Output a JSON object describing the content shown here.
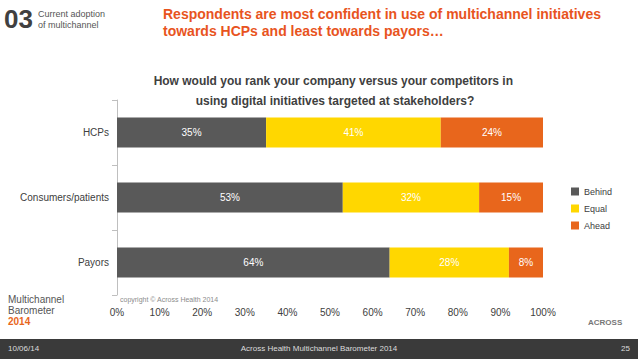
{
  "slide": {
    "section_number": "03",
    "section_name": "Current adoption of multichannel",
    "headline": "Respondents are most confident in use of multichannel initiatives towards HCPs and least towards payors…",
    "copyright": "copyright © Across Health 2014",
    "logo_lines": [
      "Multichannel",
      "Barometer",
      "2014"
    ],
    "company_logo": "ACROSS",
    "footer": {
      "date": "10/06/14",
      "center": "Across Health Multichannel Barometer 2014",
      "page": "25"
    }
  },
  "chart_data": {
    "type": "bar",
    "title": "How would you rank your company versus your competitors in using digital initiatives targeted at stakeholders?",
    "orientation": "horizontal",
    "stacked": true,
    "data_labels": true,
    "grid": false,
    "legend": "right",
    "categories": [
      "HCPs",
      "Consumers/patients",
      "Payors"
    ],
    "series": [
      {
        "name": "Behind",
        "color": "#595959",
        "values": [
          35,
          53,
          64
        ],
        "value_labels": [
          "35%",
          "53%",
          "64%"
        ]
      },
      {
        "name": "Equal",
        "color": "#ffd700",
        "values": [
          41,
          32,
          28
        ],
        "value_labels": [
          "41%",
          "32%",
          "28%"
        ]
      },
      {
        "name": "Ahead",
        "color": "#e8661c",
        "values": [
          24,
          15,
          8
        ],
        "value_labels": [
          "24%",
          "15%",
          "8%"
        ]
      }
    ],
    "xlim": [
      0,
      100
    ],
    "xticks": [
      {
        "value": 0,
        "label": "0%"
      },
      {
        "value": 10,
        "label": "10%"
      },
      {
        "value": 20,
        "label": "20%"
      },
      {
        "value": 30,
        "label": "30%"
      },
      {
        "value": 40,
        "label": "40%"
      },
      {
        "value": 50,
        "label": "50%"
      },
      {
        "value": 60,
        "label": "60%"
      },
      {
        "value": 70,
        "label": "70%"
      },
      {
        "value": 80,
        "label": "80%"
      },
      {
        "value": 90,
        "label": "90%"
      },
      {
        "value": 100,
        "label": "100%"
      }
    ]
  }
}
